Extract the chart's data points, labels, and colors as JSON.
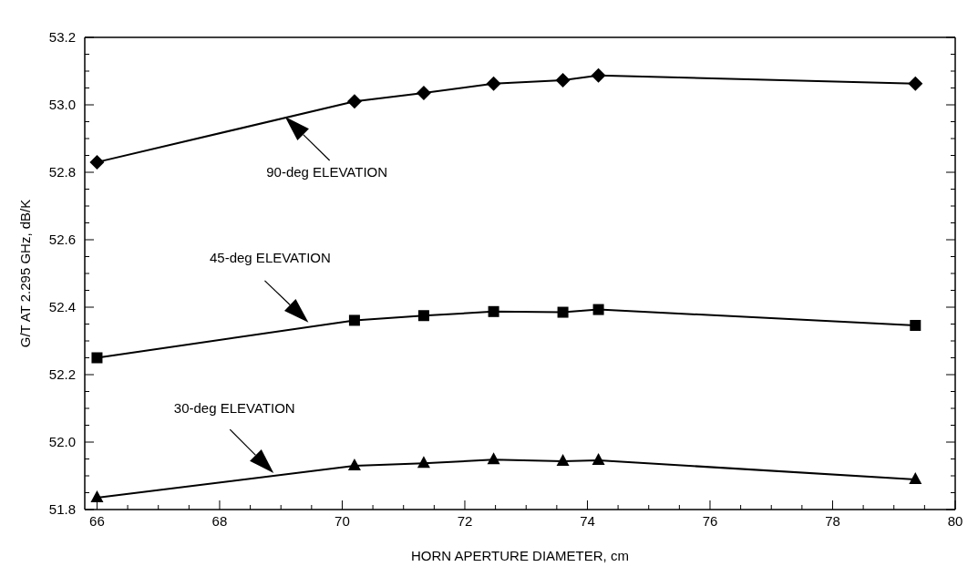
{
  "chart_data": {
    "type": "line",
    "xlabel": "HORN APERTURE DIAMETER, cm",
    "ylabel": "G/T AT 2.295 GHz, dB/K",
    "line_style": "solid",
    "grid": false,
    "legend": false,
    "series": [
      {
        "color": "#000000",
        "marker": "diamond",
        "x": [
          66.0,
          70.2,
          71.33,
          72.47,
          73.6,
          74.18,
          79.35
        ],
        "values": [
          52.83,
          53.01,
          53.035,
          53.063,
          53.073,
          53.087,
          53.063
        ]
      },
      {
        "color": "#000000",
        "marker": "square",
        "x": [
          66.0,
          70.2,
          71.33,
          72.47,
          73.6,
          74.18,
          79.35
        ],
        "values": [
          52.25,
          52.361,
          52.375,
          52.387,
          52.385,
          52.393,
          52.346
        ]
      },
      {
        "color": "#000000",
        "marker": "triangle",
        "x": [
          66.0,
          70.2,
          71.33,
          72.47,
          73.6,
          74.18,
          79.35
        ],
        "values": [
          51.835,
          51.93,
          51.937,
          51.948,
          51.943,
          51.946,
          51.889
        ]
      }
    ],
    "xlim": [
      65.8,
      80
    ],
    "ylim": [
      51.8,
      53.2
    ],
    "xticks": [
      66,
      {
        "value": 66.5,
        "label": null
      },
      {
        "value": 67,
        "label": null
      },
      {
        "value": 67.5,
        "label": null
      },
      68,
      {
        "value": 68.5,
        "label": null
      },
      {
        "value": 69,
        "label": null
      },
      {
        "value": 69.5,
        "label": null
      },
      70,
      {
        "value": 70.5,
        "label": null
      },
      {
        "value": 71,
        "label": null
      },
      {
        "value": 71.5,
        "label": null
      },
      72,
      {
        "value": 72.5,
        "label": null
      },
      {
        "value": 73,
        "label": null
      },
      {
        "value": 73.5,
        "label": null
      },
      74,
      {
        "value": 74.5,
        "label": null
      },
      {
        "value": 75,
        "label": null
      },
      {
        "value": 75.5,
        "label": null
      },
      76,
      {
        "value": 76.5,
        "label": null
      },
      {
        "value": 77,
        "label": null
      },
      {
        "value": 77.5,
        "label": null
      },
      78,
      {
        "value": 78.5,
        "label": null
      },
      {
        "value": 79,
        "label": null
      },
      {
        "value": 79.5,
        "label": null
      },
      80
    ],
    "yticks": [
      {
        "value": 51.8,
        "label": "51.8"
      },
      {
        "value": 51.85,
        "label": null
      },
      {
        "value": 51.9,
        "label": null
      },
      {
        "value": 51.95,
        "label": null
      },
      {
        "value": 52,
        "label": "52.0"
      },
      {
        "value": 52.05,
        "label": null
      },
      {
        "value": 52.1,
        "label": null
      },
      {
        "value": 52.15,
        "label": null
      },
      {
        "value": 52.2,
        "label": "52.2"
      },
      {
        "value": 52.25,
        "label": null
      },
      {
        "value": 52.3,
        "label": null
      },
      {
        "value": 52.35,
        "label": null
      },
      {
        "value": 52.4,
        "label": "52.4"
      },
      {
        "value": 52.45,
        "label": null
      },
      {
        "value": 52.5,
        "label": null
      },
      {
        "value": 52.55,
        "label": null
      },
      {
        "value": 52.6,
        "label": "52.6"
      },
      {
        "value": 52.65,
        "label": null
      },
      {
        "value": 52.7,
        "label": null
      },
      {
        "value": 52.75,
        "label": null
      },
      {
        "value": 52.8,
        "label": "52.8"
      },
      {
        "value": 52.85,
        "label": null
      },
      {
        "value": 52.9,
        "label": null
      },
      {
        "value": 52.95,
        "label": null
      },
      {
        "value": 53,
        "label": "53.0"
      },
      {
        "value": 53.05,
        "label": null
      },
      {
        "value": 53.1,
        "label": null
      },
      {
        "value": 53.15,
        "label": null
      },
      {
        "value": 53.2,
        "label": "53.2"
      }
    ],
    "annotations": [
      "90-deg ELEVATION",
      "45-deg ELEVATION",
      "30-deg ELEVATION"
    ]
  }
}
